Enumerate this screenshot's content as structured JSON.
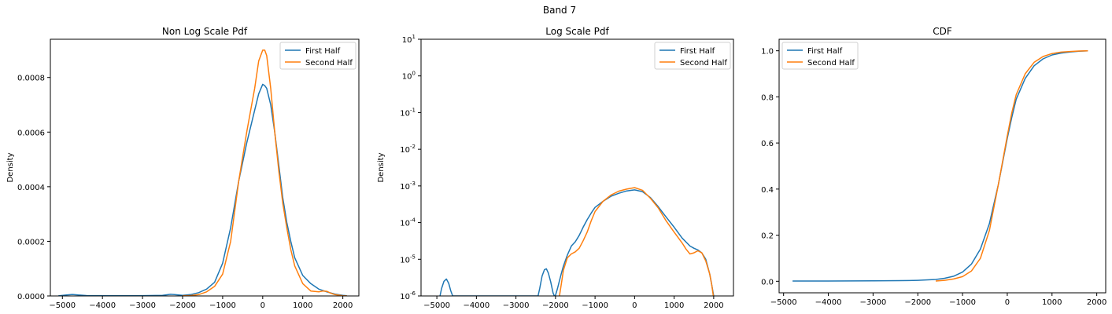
{
  "figure": {
    "suptitle": "Band 7"
  },
  "colors": {
    "first_half": "#1f77b4",
    "second_half": "#ff7f0e"
  },
  "chart_data": [
    {
      "type": "line",
      "title": "Non Log Scale Pdf",
      "xlabel": "",
      "ylabel": "Density",
      "xlim": [
        -5300,
        2400
      ],
      "ylim": [
        0,
        0.00094
      ],
      "yscale": "linear",
      "xticks": [
        -5000,
        -4000,
        -3000,
        -2000,
        -1000,
        0,
        1000,
        2000
      ],
      "xtick_labels": [
        "−5000",
        "−4000",
        "−3000",
        "−2000",
        "−1000",
        "0",
        "1000",
        "2000"
      ],
      "yticks": [
        0,
        0.0002,
        0.0004,
        0.0006,
        0.0008
      ],
      "ytick_labels": [
        "0.0000",
        "0.0002",
        "0.0004",
        "0.0006",
        "0.0008"
      ],
      "legend": "top-right",
      "grid": false,
      "series": [
        {
          "name": "First Half",
          "color": "#1f77b4",
          "x": [
            -5100,
            -4900,
            -4750,
            -4600,
            -4400,
            -4000,
            -3500,
            -3000,
            -2500,
            -2300,
            -2200,
            -2000,
            -1800,
            -1600,
            -1400,
            -1200,
            -1000,
            -800,
            -600,
            -400,
            -200,
            -100,
            0,
            50,
            100,
            200,
            300,
            400,
            500,
            600,
            700,
            800,
            1000,
            1200,
            1400,
            1600,
            1800,
            2000,
            2100
          ],
          "y": [
            2e-07,
            3.5e-06,
            5.5e-06,
            3.5e-06,
            1.5e-06,
            1e-06,
            1e-06,
            1.2e-06,
            2e-06,
            6e-06,
            5e-06,
            2e-06,
            5e-06,
            1.2e-05,
            2.5e-05,
            5e-05,
            0.00012,
            0.00025,
            0.00042,
            0.00056,
            0.00068,
            0.00074,
            0.000775,
            0.00077,
            0.00076,
            0.0007,
            0.0006,
            0.00048,
            0.00036,
            0.00027,
            0.0002,
            0.00014,
            7.5e-05,
            4.5e-05,
            2.5e-05,
            1.5e-05,
            7e-06,
            2e-06,
            5e-07
          ]
        },
        {
          "name": "Second Half",
          "color": "#ff7f0e",
          "x": [
            -2000,
            -1800,
            -1600,
            -1400,
            -1200,
            -1000,
            -800,
            -600,
            -400,
            -200,
            -100,
            0,
            50,
            100,
            200,
            300,
            400,
            500,
            600,
            700,
            800,
            1000,
            1200,
            1400,
            1500,
            1600,
            1700,
            1800,
            2000,
            2100
          ],
          "y": [
            5e-07,
            1.5e-06,
            5e-06,
            1.5e-05,
            3.5e-05,
            8e-05,
            0.0002,
            0.00042,
            0.0006,
            0.00076,
            0.00086,
            0.0009,
            0.0009,
            0.00088,
            0.00076,
            0.0006,
            0.00046,
            0.00034,
            0.00025,
            0.00017,
            0.00011,
            4.5e-05,
            1.8e-05,
            1.5e-05,
            1.8e-05,
            1.7e-05,
            1e-05,
            5e-06,
            1e-06,
            3e-07
          ]
        }
      ]
    },
    {
      "type": "line",
      "title": "Log Scale Pdf",
      "xlabel": "",
      "ylabel": "Density",
      "xlim": [
        -5400,
        2500
      ],
      "ylim": [
        1e-06,
        10
      ],
      "yscale": "log",
      "xticks": [
        -5000,
        -4000,
        -3000,
        -2000,
        -1000,
        0,
        1000,
        2000
      ],
      "xtick_labels": [
        "−5000",
        "−4000",
        "−3000",
        "−2000",
        "−1000",
        "0",
        "1000",
        "2000"
      ],
      "yticks_exp": [
        -6,
        -5,
        -4,
        -3,
        -2,
        -1,
        0,
        1
      ],
      "ytick_base": "10",
      "legend": "top-right",
      "grid": false,
      "series": [
        {
          "name": "First Half",
          "color": "#1f77b4",
          "x": [
            -4920,
            -4880,
            -4820,
            -4760,
            -4700,
            -4650,
            -4600,
            -2440,
            -2400,
            -2340,
            -2280,
            -2230,
            -2180,
            -2120,
            -2060,
            -2030,
            -2000,
            -1950,
            -1900,
            -1850,
            -1800,
            -1700,
            -1600,
            -1500,
            -1400,
            -1300,
            -1200,
            -1100,
            -1000,
            -800,
            -600,
            -400,
            -200,
            0,
            200,
            400,
            600,
            800,
            1000,
            1200,
            1400,
            1500,
            1600,
            1700,
            1800,
            1900,
            1950,
            2000
          ],
          "y": [
            1e-06,
            1.6e-06,
            2.5e-06,
            2.9e-06,
            2.2e-06,
            1.4e-06,
            1e-06,
            1e-06,
            1.6e-06,
            3.5e-06,
            5.2e-06,
            5.5e-06,
            4.2e-06,
            2.4e-06,
            1.2e-06,
            1e-06,
            1.05e-06,
            1.6e-06,
            2.6e-06,
            4.2e-06,
            6.5e-06,
            1.3e-05,
            2.3e-05,
            3e-05,
            4.5e-05,
            7.5e-05,
            0.00012,
            0.00018,
            0.00026,
            0.00038,
            0.00052,
            0.00063,
            0.00073,
            0.00078,
            0.0007,
            0.00048,
            0.00027,
            0.00014,
            7.5e-05,
            3.8e-05,
            2.3e-05,
            2e-05,
            1.8e-05,
            1.5e-05,
            1e-05,
            4e-06,
            2e-06,
            1e-06
          ]
        },
        {
          "name": "Second Half",
          "color": "#ff7f0e",
          "x": [
            -1900,
            -1850,
            -1800,
            -1700,
            -1600,
            -1500,
            -1400,
            -1300,
            -1200,
            -1100,
            -1000,
            -800,
            -600,
            -400,
            -200,
            0,
            200,
            400,
            600,
            800,
            1000,
            1200,
            1300,
            1400,
            1500,
            1600,
            1700,
            1800,
            1900,
            1950,
            1990
          ],
          "y": [
            1e-06,
            2.2e-06,
            5e-06,
            1.1e-05,
            1.4e-05,
            1.6e-05,
            2e-05,
            3.2e-05,
            5.5e-05,
            0.00011,
            0.0002,
            0.00038,
            0.00056,
            0.00072,
            0.00082,
            0.0009,
            0.00076,
            0.00046,
            0.00025,
            0.00011,
            5.5e-05,
            2.8e-05,
            1.9e-05,
            1.4e-05,
            1.5e-05,
            1.7e-05,
            1.5e-05,
            9e-06,
            4e-06,
            2e-06,
            1e-06
          ]
        }
      ]
    },
    {
      "type": "line",
      "title": "CDF",
      "xlabel": "",
      "ylabel": "",
      "xlim": [
        -5100,
        2200
      ],
      "ylim": [
        -0.05,
        1.05
      ],
      "yscale": "linear",
      "xticks": [
        -5000,
        -4000,
        -3000,
        -2000,
        -1000,
        0,
        1000,
        2000
      ],
      "xtick_labels": [
        "−5000",
        "−4000",
        "−3000",
        "−2000",
        "−1000",
        "0",
        "1000",
        "2000"
      ],
      "yticks": [
        0,
        0.2,
        0.4,
        0.6,
        0.8,
        1.0
      ],
      "ytick_labels": [
        "0.0",
        "0.2",
        "0.4",
        "0.6",
        "0.8",
        "1.0"
      ],
      "legend": "top-left",
      "grid": false,
      "series": [
        {
          "name": "First Half",
          "color": "#1f77b4",
          "x": [
            -4800,
            -4000,
            -3000,
            -2200,
            -2000,
            -1600,
            -1400,
            -1200,
            -1000,
            -800,
            -600,
            -400,
            -200,
            0,
            100,
            200,
            400,
            600,
            800,
            1000,
            1200,
            1400,
            1600,
            1800
          ],
          "y": [
            0.001,
            0.001,
            0.002,
            0.003,
            0.004,
            0.008,
            0.013,
            0.022,
            0.04,
            0.075,
            0.14,
            0.25,
            0.42,
            0.62,
            0.71,
            0.79,
            0.88,
            0.935,
            0.965,
            0.982,
            0.99,
            0.995,
            0.998,
            1.0
          ]
        },
        {
          "name": "Second Half",
          "color": "#ff7f0e",
          "x": [
            -1600,
            -1400,
            -1200,
            -1000,
            -800,
            -600,
            -400,
            -200,
            0,
            100,
            200,
            400,
            600,
            800,
            1000,
            1200,
            1400,
            1600,
            1800
          ],
          "y": [
            0.001,
            0.004,
            0.01,
            0.02,
            0.045,
            0.1,
            0.22,
            0.42,
            0.63,
            0.73,
            0.81,
            0.9,
            0.95,
            0.975,
            0.988,
            0.994,
            0.997,
            0.999,
            1.0
          ]
        }
      ]
    }
  ]
}
